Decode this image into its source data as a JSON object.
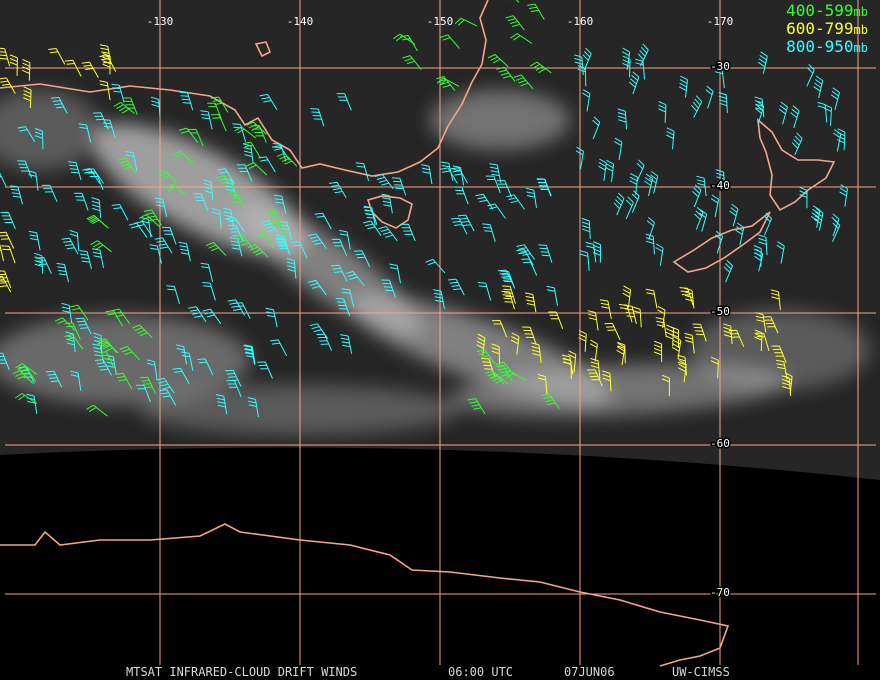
{
  "map": {
    "longitude_labels": [
      "-130",
      "-140",
      "-150",
      "-160",
      "-170"
    ],
    "latitude_labels": [
      "-30",
      "-40",
      "-50",
      "-60",
      "-70"
    ],
    "grid_color": "#f4a58a",
    "coast_color": "#f4a58a"
  },
  "legend": [
    {
      "range": "400-599",
      "unit": "mb",
      "color": "#33ff33"
    },
    {
      "range": "600-799",
      "unit": "mb",
      "color": "#ffff33"
    },
    {
      "range": "800-950",
      "unit": "mb",
      "color": "#33ffff"
    }
  ],
  "footer": [
    "MTSAT INFRARED-CLOUD DRIFT WINDS",
    "06:00 UTC",
    "07JUN06",
    "UW-CIMSS"
  ]
}
